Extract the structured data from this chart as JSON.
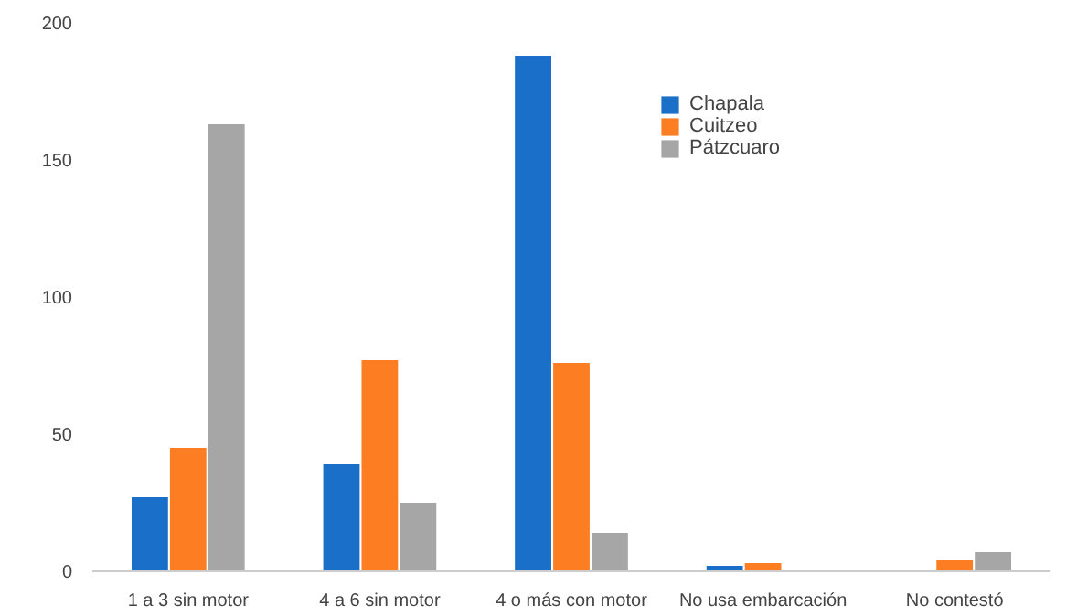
{
  "chart_data": {
    "type": "bar",
    "categories": [
      "1 a 3 sin motor",
      "4 a 6 sin motor",
      "4 o más con motor",
      "No usa embarcación",
      "No contestó"
    ],
    "series": [
      {
        "name": "Chapala",
        "color": "#1a6fc9",
        "values": [
          27,
          39,
          188,
          2,
          0
        ]
      },
      {
        "name": "Cuitzeo",
        "color": "#fd7d22",
        "values": [
          45,
          77,
          76,
          3,
          4
        ]
      },
      {
        "name": "Pátzcuaro",
        "color": "#a6a6a6",
        "values": [
          163,
          25,
          14,
          0,
          7
        ]
      }
    ],
    "ylim": [
      0,
      200
    ],
    "yticks": [
      0,
      50,
      100,
      150,
      200
    ],
    "grid": false,
    "legend": "top right"
  }
}
